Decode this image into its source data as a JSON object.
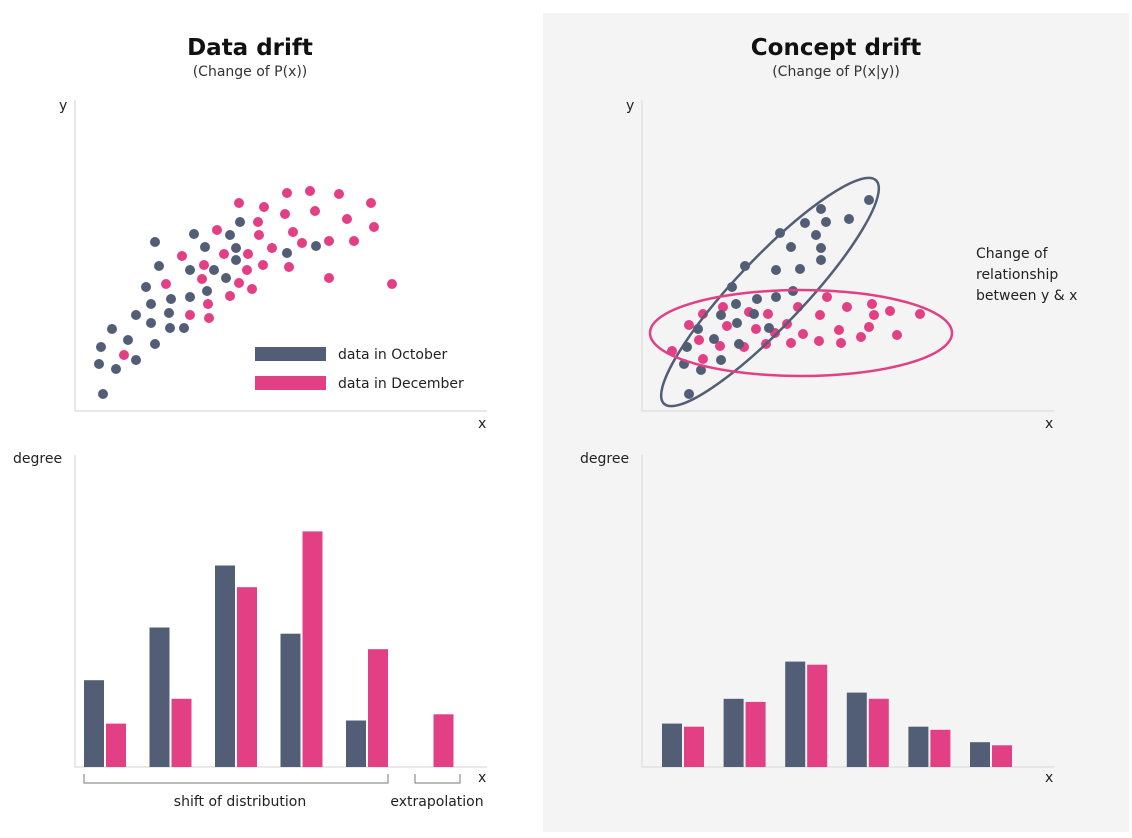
{
  "colors": {
    "october": "#525e76",
    "december": "#e33f84",
    "panel_bg": "#f4f4f4"
  },
  "left": {
    "title": "Data drift",
    "subtitle": "(Change of P(x))",
    "scatter": {
      "y_label": "y",
      "x_label": "x"
    },
    "legend": {
      "october": "data in October",
      "december": "data in December"
    },
    "bars": {
      "y_label": "degree",
      "x_label": "x",
      "groups": [
        {
          "october": 28,
          "december": 14
        },
        {
          "october": 45,
          "december": 22
        },
        {
          "october": 65,
          "december": 58
        },
        {
          "october": 43,
          "december": 76
        },
        {
          "october": 15,
          "december": 38
        },
        {
          "october": null,
          "december": 17
        }
      ],
      "bracket_shift": "shift of distribution",
      "bracket_extrapolation": "extrapolation"
    }
  },
  "right": {
    "title": "Concept drift",
    "subtitle": "(Change of P(x|y))",
    "scatter": {
      "y_label": "y",
      "x_label": "x"
    },
    "annotation": [
      "Change of",
      "relationship",
      "between y & x"
    ],
    "bars": {
      "y_label": "degree",
      "x_label": "x",
      "groups": [
        {
          "october": 14,
          "december": 13
        },
        {
          "october": 22,
          "december": 21
        },
        {
          "october": 34,
          "december": 33
        },
        {
          "october": 24,
          "december": 22
        },
        {
          "october": 13,
          "december": 12
        },
        {
          "october": 8,
          "december": 7
        }
      ]
    }
  }
}
